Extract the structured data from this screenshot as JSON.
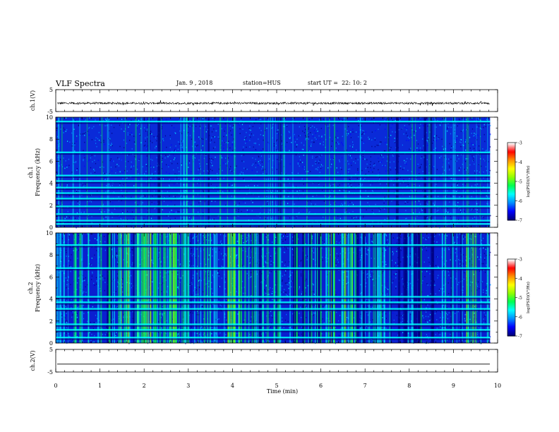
{
  "header": {
    "title": "VLF Spectra",
    "date": "Jan. 9 , 2018",
    "station": "station=HUS",
    "start": "start UT =  22: 10: 2"
  },
  "chart_data": [
    {
      "type": "line",
      "panel": "ch.1 waveform",
      "ylabel": "ch.1(V)",
      "yticks": [
        "5",
        "-5"
      ],
      "ylim": [
        -5,
        5
      ],
      "xlim": [
        0,
        10
      ],
      "series": [
        {
          "values": [
            -1.2
          ]
        }
      ]
    },
    {
      "type": "heatmap",
      "panel": "ch.1 spectrogram",
      "ylabel_line1": "ch.1",
      "ylabel_line2": "Frequency (kHz)",
      "yticks": [
        "0",
        "2",
        "4",
        "6",
        "8",
        "10"
      ],
      "ylim": [
        0,
        10
      ],
      "xlim": [
        0,
        9.83
      ],
      "bands_khz": [
        0.3,
        0.6,
        1.2,
        1.9,
        2.6,
        3.1,
        3.6,
        4.2,
        4.7,
        6.8,
        9.6
      ],
      "colorbar": {
        "label": "log(PSD)(V²/Hz)",
        "ticks": [
          "-3",
          "-4",
          "-5",
          "-6",
          "-7"
        ],
        "range": [
          -7,
          -3
        ]
      }
    },
    {
      "type": "heatmap",
      "panel": "ch.2 spectrogram",
      "ylabel_line1": "ch.2",
      "ylabel_line2": "Frequency (kHz)",
      "yticks": [
        "0",
        "2",
        "4",
        "6",
        "8",
        "10"
      ],
      "ylim": [
        0,
        10
      ],
      "xlim": [
        0,
        9.83
      ],
      "bands_khz": [
        0.5,
        1.2,
        1.7,
        3.1,
        3.7,
        4.2,
        6.8,
        8.9
      ],
      "colorbar": {
        "label": "log(PSD)(V²/Hz)",
        "ticks": [
          "-3",
          "-4",
          "-5",
          "-6",
          "-7"
        ],
        "range": [
          -7,
          -3
        ]
      }
    },
    {
      "type": "line",
      "panel": "ch.2 waveform",
      "ylabel": "ch.2(V)",
      "yticks": [
        "5",
        "-5"
      ],
      "ylim": [
        -5,
        5
      ],
      "xlim": [
        0,
        10
      ],
      "series": [
        {
          "values": [
            -1.5
          ]
        }
      ]
    }
  ],
  "xaxis": {
    "label": "Time (min)",
    "ticks": [
      "0",
      "1",
      "2",
      "3",
      "4",
      "5",
      "6",
      "7",
      "8",
      "9",
      "10"
    ],
    "xlim": [
      0,
      10
    ]
  },
  "colors": {
    "background": "#ffffff",
    "colormap": [
      "#00007f",
      "#0000ff",
      "#0090ff",
      "#00ffff",
      "#00ff50",
      "#90ff00",
      "#ffff00",
      "#ff9000",
      "#ff0000",
      "#ffffff"
    ]
  }
}
